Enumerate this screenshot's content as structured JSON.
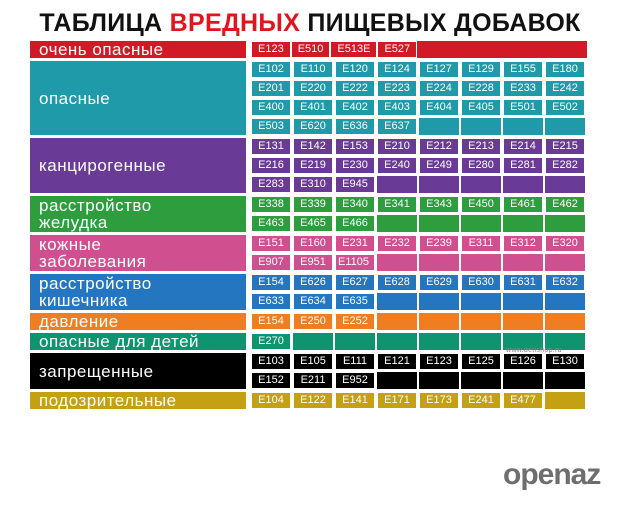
{
  "title": {
    "part1": "ТАБЛИЦА ",
    "highlight": "ВРЕДНЫХ",
    "part2": " ПИЩЕВЫХ ДОБАВОК"
  },
  "colors": {
    "title_highlight": "#e3151c",
    "very_dangerous": "#d11a26",
    "dangerous": "#1f9aa8",
    "carcinogenic": "#6a3b96",
    "stomach": "#2e9d3e",
    "skin": "#cf4f8f",
    "intestine": "#2476c0",
    "pressure": "#ef7d21",
    "children": "#0f9470",
    "forbidden": "#000000",
    "suspicious": "#c4a012"
  },
  "categories": [
    {
      "id": "very-dangerous",
      "label": [
        "очень опасные"
      ],
      "color": "#d11a26",
      "inline": true,
      "rows": [
        [
          "E123",
          "E510",
          "E513E",
          "E527"
        ]
      ]
    },
    {
      "id": "dangerous",
      "label": [
        "опасные"
      ],
      "color": "#1f9aa8",
      "rows": [
        [
          "E102",
          "E110",
          "E120",
          "E124",
          "E127",
          "E129",
          "E155",
          "E180"
        ],
        [
          "E201",
          "E220",
          "E222",
          "E223",
          "E224",
          "E228",
          "E233",
          "E242"
        ],
        [
          "E400",
          "E401",
          "E402",
          "E403",
          "E404",
          "E405",
          "E501",
          "E502"
        ],
        [
          "E503",
          "E620",
          "E636",
          "E637",
          "",
          "",
          "",
          ""
        ]
      ]
    },
    {
      "id": "carcinogenic",
      "label": [
        "канцирогенные"
      ],
      "color": "#6a3b96",
      "rows": [
        [
          "E131",
          "E142",
          "E153",
          "E210",
          "E212",
          "E213",
          "E214",
          "E215"
        ],
        [
          "E216",
          "E219",
          "E230",
          "E240",
          "E249",
          "E280",
          "E281",
          "E282"
        ],
        [
          "E283",
          "E310",
          "E945",
          "",
          "",
          "",
          "",
          ""
        ]
      ]
    },
    {
      "id": "stomach",
      "label": [
        "расстройство",
        "желудка"
      ],
      "color": "#2e9d3e",
      "rows": [
        [
          "E338",
          "E339",
          "E340",
          "E341",
          "E343",
          "E450",
          "E461",
          "E462"
        ],
        [
          "E463",
          "E465",
          "E466",
          "",
          "",
          "",
          "",
          ""
        ]
      ]
    },
    {
      "id": "skin",
      "label": [
        "кожные",
        "заболевания"
      ],
      "color": "#cf4f8f",
      "rows": [
        [
          "E151",
          "E160",
          "E231",
          "E232",
          "E239",
          "E311",
          "E312",
          "E320"
        ],
        [
          "E907",
          "E951",
          "E1105",
          "",
          "",
          "",
          "",
          ""
        ]
      ]
    },
    {
      "id": "intestine",
      "label": [
        "расстройство",
        "кишечника"
      ],
      "color": "#2476c0",
      "rows": [
        [
          "E154",
          "E626",
          "E627",
          "E628",
          "E629",
          "E630",
          "E631",
          "E632"
        ],
        [
          "E633",
          "E634",
          "E635",
          "",
          "",
          "",
          "",
          ""
        ]
      ]
    },
    {
      "id": "pressure",
      "label": [
        "давление"
      ],
      "color": "#ef7d21",
      "rows": [
        [
          "E154",
          "E250",
          "E252",
          "",
          "",
          "",
          "",
          ""
        ]
      ]
    },
    {
      "id": "children",
      "label": [
        "опасные для детей"
      ],
      "color": "#0f9470",
      "rows": [
        [
          "E270",
          "",
          "",
          "",
          "",
          "",
          "",
          ""
        ]
      ]
    },
    {
      "id": "forbidden",
      "label": [
        "запрещенные"
      ],
      "color": "#000000",
      "rows": [
        [
          "E103",
          "E105",
          "E111",
          "E121",
          "E123",
          "E125",
          "E126",
          "E130"
        ],
        [
          "E152",
          "E211",
          "E952",
          "",
          "",
          "",
          "",
          ""
        ]
      ]
    },
    {
      "id": "suspicious",
      "label": [
        "подозрительные"
      ],
      "color": "#c4a012",
      "rows": [
        [
          "E104",
          "E122",
          "E141",
          "E171",
          "E173",
          "E241",
          "E477",
          ""
        ]
      ]
    }
  ],
  "watermark": "www.detishop.ru",
  "brand": "openaz"
}
